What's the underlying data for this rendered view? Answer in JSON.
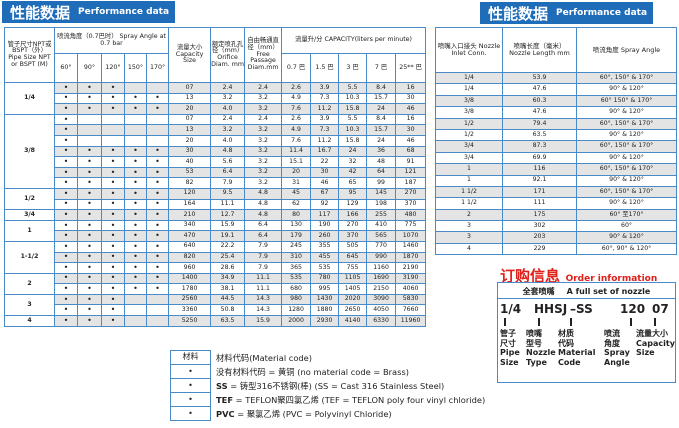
{
  "left_banner": {
    "zh": "性能数据",
    "en": "Performance data"
  },
  "right_banner": {
    "zh": "性能数据",
    "en": "Performance data"
  },
  "main_table": {
    "headers": {
      "pipe": "管子尺寸NPT或BSPT（外） Pipe Size NPT or BSPT (M)",
      "spray_angle": "喷流角度（0.7巴时） Spray Angle at 0.7 bar",
      "angles": [
        "60°",
        "90°",
        "120°",
        "150°",
        "170°"
      ],
      "capacity_size": "流量大小 Capacity Size",
      "orifice": "额定喷孔孔径（mm） Orifice Diam. mm",
      "free_passage": "自由畅通直径（mm） Free Passage Diam.mm",
      "capacity": "流量升/分 CAPACITY(liters per minute)",
      "pressures": [
        "0.7 巴",
        "1.5 巴",
        "3 巴",
        "7 巴",
        "25** 巴"
      ]
    },
    "dot": "•",
    "groups": [
      {
        "pipe": "1/4",
        "rows": [
          {
            "angles": [
              1,
              1,
              1,
              0,
              0
            ],
            "size": "07",
            "orifice": "2.4",
            "free": "2.4",
            "cap": [
              "2.6",
              "3.9",
              "5.5",
              "8.4",
              "16"
            ]
          },
          {
            "angles": [
              1,
              1,
              1,
              1,
              1
            ],
            "size": "13",
            "orifice": "3.2",
            "free": "3.2",
            "cap": [
              "4.9",
              "7.3",
              "10.3",
              "15.7",
              "30"
            ]
          },
          {
            "angles": [
              1,
              1,
              1,
              1,
              1
            ],
            "size": "20",
            "orifice": "4.0",
            "free": "3.2",
            "cap": [
              "7.6",
              "11.2",
              "15.8",
              "24",
              "46"
            ]
          }
        ]
      },
      {
        "pipe": "3/8",
        "rows": [
          {
            "angles": [
              1,
              0,
              0,
              0,
              0
            ],
            "size": "07",
            "orifice": "2.4",
            "free": "2.4",
            "cap": [
              "2.6",
              "3.9",
              "5.5",
              "8.4",
              "16"
            ]
          },
          {
            "angles": [
              1,
              0,
              0,
              0,
              0
            ],
            "size": "13",
            "orifice": "3.2",
            "free": "3.2",
            "cap": [
              "4.9",
              "7.3",
              "10.3",
              "15.7",
              "30"
            ]
          },
          {
            "angles": [
              1,
              0,
              0,
              0,
              0
            ],
            "size": "20",
            "orifice": "4.0",
            "free": "3.2",
            "cap": [
              "7.6",
              "11.2",
              "15.8",
              "24",
              "46"
            ]
          },
          {
            "angles": [
              1,
              1,
              1,
              1,
              1
            ],
            "size": "30",
            "orifice": "4.8",
            "free": "3.2",
            "cap": [
              "11.4",
              "16.7",
              "24",
              "36",
              "68"
            ]
          },
          {
            "angles": [
              1,
              1,
              1,
              1,
              1
            ],
            "size": "40",
            "orifice": "5.6",
            "free": "3.2",
            "cap": [
              "15.1",
              "22",
              "32",
              "48",
              "91"
            ]
          },
          {
            "angles": [
              1,
              1,
              1,
              1,
              1
            ],
            "size": "53",
            "orifice": "6.4",
            "free": "3.2",
            "cap": [
              "20",
              "30",
              "42",
              "64",
              "121"
            ]
          },
          {
            "angles": [
              1,
              1,
              1,
              1,
              1
            ],
            "size": "82",
            "orifice": "7.9",
            "free": "3.2",
            "cap": [
              "31",
              "46",
              "65",
              "99",
              "187"
            ]
          }
        ]
      },
      {
        "pipe": "1/2",
        "rows": [
          {
            "angles": [
              1,
              1,
              1,
              1,
              1
            ],
            "size": "120",
            "orifice": "9.5",
            "free": "4.8",
            "cap": [
              "45",
              "67",
              "95",
              "145",
              "270"
            ]
          },
          {
            "angles": [
              1,
              1,
              1,
              1,
              1
            ],
            "size": "164",
            "orifice": "11.1",
            "free": "4.8",
            "cap": [
              "62",
              "92",
              "129",
              "198",
              "370"
            ]
          }
        ]
      },
      {
        "pipe": "3/4",
        "rows": [
          {
            "angles": [
              1,
              1,
              1,
              1,
              1
            ],
            "size": "210",
            "orifice": "12.7",
            "free": "4.8",
            "cap": [
              "80",
              "117",
              "166",
              "255",
              "480"
            ]
          }
        ]
      },
      {
        "pipe": "1",
        "rows": [
          {
            "angles": [
              1,
              1,
              1,
              1,
              1
            ],
            "size": "340",
            "orifice": "15.9",
            "free": "6.4",
            "cap": [
              "130",
              "190",
              "270",
              "410",
              "775"
            ]
          },
          {
            "angles": [
              1,
              1,
              1,
              1,
              1
            ],
            "size": "470",
            "orifice": "19.1",
            "free": "6.4",
            "cap": [
              "179",
              "260",
              "370",
              "565",
              "1070"
            ]
          }
        ]
      },
      {
        "pipe": "1-1/2",
        "rows": [
          {
            "angles": [
              1,
              1,
              1,
              1,
              1
            ],
            "size": "640",
            "orifice": "22.2",
            "free": "7.9",
            "cap": [
              "245",
              "355",
              "505",
              "770",
              "1460"
            ]
          },
          {
            "angles": [
              1,
              1,
              1,
              1,
              1
            ],
            "size": "820",
            "orifice": "25.4",
            "free": "7.9",
            "cap": [
              "310",
              "455",
              "645",
              "990",
              "1870"
            ]
          },
          {
            "angles": [
              1,
              1,
              1,
              1,
              1
            ],
            "size": "960",
            "orifice": "28.6",
            "free": "7.9",
            "cap": [
              "365",
              "535",
              "755",
              "1160",
              "2190"
            ]
          }
        ]
      },
      {
        "pipe": "2",
        "rows": [
          {
            "angles": [
              1,
              1,
              1,
              1,
              1
            ],
            "size": "1400",
            "orifice": "34.9",
            "free": "11.1",
            "cap": [
              "535",
              "780",
              "1105",
              "1690",
              "3190"
            ]
          },
          {
            "angles": [
              1,
              1,
              1,
              1,
              1
            ],
            "size": "1780",
            "orifice": "38.1",
            "free": "11.1",
            "cap": [
              "680",
              "995",
              "1405",
              "2150",
              "4060"
            ]
          }
        ]
      },
      {
        "pipe": "3",
        "rows": [
          {
            "angles": [
              1,
              1,
              1,
              0,
              0
            ],
            "size": "2560",
            "orifice": "44.5",
            "free": "14.3",
            "cap": [
              "980",
              "1430",
              "2020",
              "3090",
              "5830"
            ]
          },
          {
            "angles": [
              1,
              1,
              1,
              0,
              0
            ],
            "size": "3360",
            "orifice": "50.8",
            "free": "14.3",
            "cap": [
              "1280",
              "1880",
              "2650",
              "4050",
              "7660"
            ]
          }
        ]
      },
      {
        "pipe": "4",
        "rows": [
          {
            "angles": [
              1,
              1,
              1,
              0,
              0
            ],
            "size": "5250",
            "orifice": "63.5",
            "free": "15.9",
            "cap": [
              "2000",
              "2930",
              "4140",
              "6330",
              "11960"
            ]
          }
        ]
      }
    ]
  },
  "material": {
    "header": "材料",
    "title": "材料代码(Material code)",
    "items": [
      {
        "code": "",
        "text": "没有材料代码 = 黄铜  (no material code = Brass)"
      },
      {
        "code": "SS",
        "text": " = 铸型316不锈钢(棒) (SS = Cast 316 Stainless Steel)"
      },
      {
        "code": "TEF",
        "text": " = TEFLON聚四氯乙烯 (TEF = TEFLON poly four vinyl chloride)"
      },
      {
        "code": "PVC",
        "text": " = 聚氯乙烯 (PVC = Polyvinyl Chloride)"
      }
    ]
  },
  "right_table": {
    "headers": [
      "喷嘴入口接头 Nozzle Inlet Conn.",
      "喷嘴长度（毫米） Nozzle Length mm",
      "喷流角度 Spray Angle"
    ],
    "rows": [
      [
        "1/4",
        "53.9",
        "60°, 150° & 170°"
      ],
      [
        "1/4",
        "47.6",
        "90° & 120°"
      ],
      [
        "3/8",
        "60.3",
        "60° 150° & 170°"
      ],
      [
        "3/8",
        "47.6",
        "90° & 120°"
      ],
      [
        "1/2",
        "79.4",
        "60°, 150° & 170°"
      ],
      [
        "1/2",
        "63.5",
        "90° & 120°"
      ],
      [
        "3/4",
        "87.3",
        "60°, 150° & 170°"
      ],
      [
        "3/4",
        "69.9",
        "90° & 120°"
      ],
      [
        "1",
        "116",
        "60°, 150° & 170°"
      ],
      [
        "1",
        "92.1",
        "90° & 120°"
      ],
      [
        "1 1/2",
        "171",
        "60°, 150° & 170°"
      ],
      [
        "1 1/2",
        "111",
        "90° & 120°"
      ],
      [
        "2",
        "175",
        "60° 至170°"
      ],
      [
        "3",
        "302",
        "60°"
      ],
      [
        "3",
        "203",
        "90° & 120°"
      ],
      [
        "4",
        "229",
        "60°, 90° & 120°"
      ]
    ]
  },
  "order": {
    "title_zh": "订购信息",
    "title_en": "Order information",
    "header_zh": "全套喷嘴",
    "header_en": "A full set of nozzle",
    "parts": [
      {
        "code": "1/4",
        "label": "管子\n尺寸\nPipe\nSize"
      },
      {
        "code": "HHSJ",
        "label": "喷嘴\n型号\nNozzle\nType"
      },
      {
        "code": "–SS",
        "label": "材质\n代码\nMaterial\nCode"
      },
      {
        "code": "120",
        "label": "喷流\n角度\nSpray\nAngle"
      },
      {
        "code": "07",
        "label": "流量大小\nCapacity\nSize"
      }
    ]
  },
  "colors": {
    "brand_blue": "#1f6cb8",
    "border_blue": "#4a8ac8",
    "order_red": "#e0201a",
    "row_shade": "#e4e4e4"
  }
}
